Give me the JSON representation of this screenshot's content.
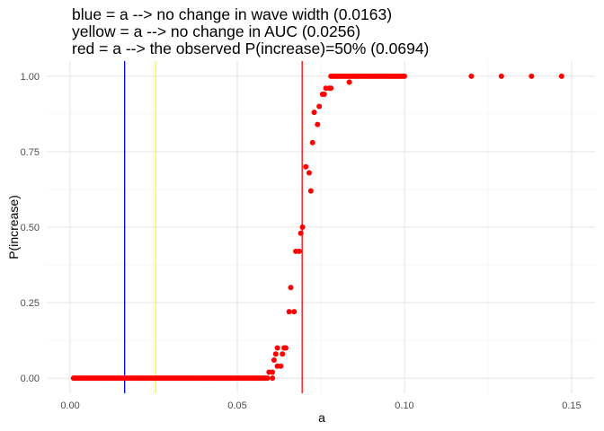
{
  "chart_data": {
    "type": "scatter",
    "title_lines": [
      "blue = a --> no change in wave width (0.0163)",
      "yellow = a --> no change in AUC (0.0256)",
      "red = a --> the observed P(increase)=50% (0.0694)"
    ],
    "xlabel": "a",
    "ylabel": "P(increase)",
    "xlim": [
      -0.007,
      0.157
    ],
    "ylim": [
      -0.05,
      1.05
    ],
    "x_ticks": [
      0.0,
      0.05,
      0.1,
      0.15
    ],
    "x_tick_labels": [
      "0.00",
      "0.05",
      "0.10",
      "0.15"
    ],
    "y_ticks": [
      0.0,
      0.25,
      0.5,
      0.75,
      1.0
    ],
    "y_tick_labels": [
      "0.00",
      "0.25",
      "0.50",
      "0.75",
      "1.00"
    ],
    "grid": true,
    "point_color": "#ff0000",
    "vlines": [
      {
        "x": 0.0163,
        "color": "#0000ff"
      },
      {
        "x": 0.0256,
        "color": "#ffff00"
      },
      {
        "x": 0.0694,
        "color": "#ff0000"
      }
    ],
    "zero_range": {
      "from": 0.001,
      "to": 0.059,
      "step": 0.0005,
      "y": 0.0
    },
    "one_range": {
      "from": 0.078,
      "to": 0.1,
      "step": 0.0005,
      "y": 1.0
    },
    "points": [
      {
        "x": 0.0595,
        "y": 0.02
      },
      {
        "x": 0.0605,
        "y": 0.02
      },
      {
        "x": 0.0605,
        "y": 0.0
      },
      {
        "x": 0.061,
        "y": 0.06
      },
      {
        "x": 0.0615,
        "y": 0.08
      },
      {
        "x": 0.062,
        "y": 0.1
      },
      {
        "x": 0.062,
        "y": 0.04
      },
      {
        "x": 0.063,
        "y": 0.04
      },
      {
        "x": 0.0635,
        "y": 0.08
      },
      {
        "x": 0.064,
        "y": 0.1
      },
      {
        "x": 0.0645,
        "y": 0.1
      },
      {
        "x": 0.0655,
        "y": 0.22
      },
      {
        "x": 0.066,
        "y": 0.3
      },
      {
        "x": 0.067,
        "y": 0.22
      },
      {
        "x": 0.0675,
        "y": 0.42
      },
      {
        "x": 0.0685,
        "y": 0.42
      },
      {
        "x": 0.069,
        "y": 0.48
      },
      {
        "x": 0.0695,
        "y": 0.5
      },
      {
        "x": 0.0705,
        "y": 0.7
      },
      {
        "x": 0.0715,
        "y": 0.68
      },
      {
        "x": 0.072,
        "y": 0.62
      },
      {
        "x": 0.0725,
        "y": 0.78
      },
      {
        "x": 0.073,
        "y": 0.88
      },
      {
        "x": 0.074,
        "y": 0.84
      },
      {
        "x": 0.0745,
        "y": 0.9
      },
      {
        "x": 0.0755,
        "y": 0.94
      },
      {
        "x": 0.076,
        "y": 0.94
      },
      {
        "x": 0.0765,
        "y": 0.96
      },
      {
        "x": 0.0775,
        "y": 0.96
      },
      {
        "x": 0.078,
        "y": 0.96
      },
      {
        "x": 0.0835,
        "y": 0.98
      },
      {
        "x": 0.12,
        "y": 1.0
      },
      {
        "x": 0.129,
        "y": 1.0
      },
      {
        "x": 0.138,
        "y": 1.0
      },
      {
        "x": 0.147,
        "y": 1.0
      }
    ]
  }
}
